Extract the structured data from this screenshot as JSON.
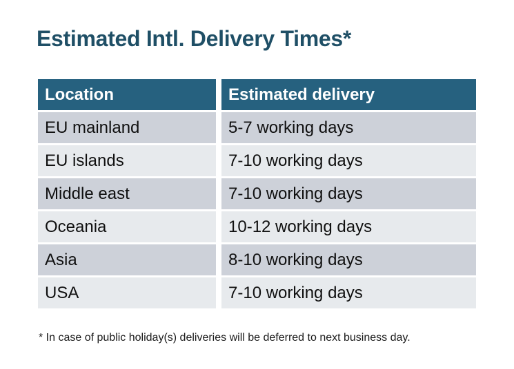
{
  "title": "Estimated Intl. Delivery Times*",
  "table": {
    "columns": [
      "Location",
      "Estimated delivery"
    ],
    "rows": [
      {
        "location": "EU mainland",
        "delivery": "5-7 working days"
      },
      {
        "location": "EU islands",
        "delivery": "7-10 working days"
      },
      {
        "location": "Middle east",
        "delivery": "7-10 working days"
      },
      {
        "location": "Oceania",
        "delivery": "10-12 working days"
      },
      {
        "location": "Asia",
        "delivery": "8-10 working days"
      },
      {
        "location": "USA",
        "delivery": "7-10 working days"
      }
    ]
  },
  "footnote": "* In case of public holiday(s) deliveries will be deferred to next business day.",
  "colors": {
    "background": "#FFFFFF",
    "title": "#1F4F66",
    "header_bg": "#26617F",
    "header_text": "#FFFFFF",
    "row_dark": "#CDD1D9",
    "row_light": "#E7EAED",
    "cell_text": "#101010",
    "footnote_text": "#1A1A1A"
  }
}
